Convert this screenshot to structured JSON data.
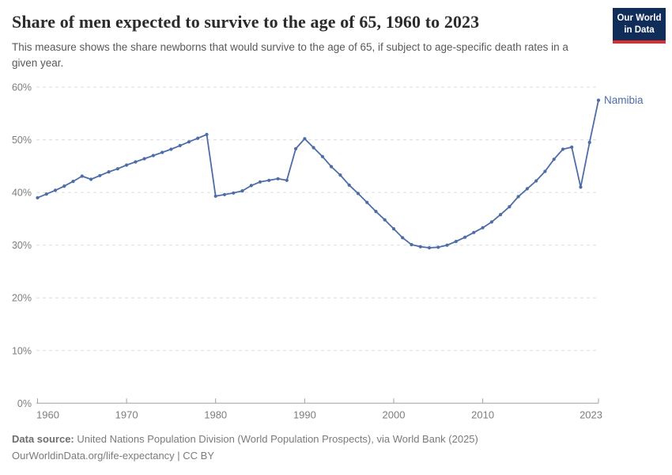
{
  "header": {
    "title": "Share of men expected to survive to the age of 65, 1960 to 2023",
    "subtitle": "This measure shows the share newborns that would survive to the age of 65, if subject to age-specific death rates in a given year."
  },
  "logo": {
    "line1": "Our World",
    "line2": "in Data",
    "bg_color": "#102d59",
    "stripe_color": "#dc2e2e"
  },
  "chart_data": {
    "type": "line",
    "title": "Share of men expected to survive to the age of 65, 1960 to 2023",
    "xlabel": "",
    "ylabel": "",
    "xlim": [
      1960,
      2023
    ],
    "ylim": [
      0,
      60
    ],
    "yticks": [
      0,
      10,
      20,
      30,
      40,
      50,
      60
    ],
    "ytick_suffix": "%",
    "xticks": [
      1960,
      1970,
      1980,
      1990,
      2000,
      2010,
      2023
    ],
    "grid": "horizontal-dashed",
    "legend_position": "end-of-line-label",
    "series": [
      {
        "name": "Namibia",
        "color": "#4c6da6",
        "x": [
          1960,
          1961,
          1962,
          1963,
          1964,
          1965,
          1966,
          1967,
          1968,
          1969,
          1970,
          1971,
          1972,
          1973,
          1974,
          1975,
          1976,
          1977,
          1978,
          1979,
          1980,
          1981,
          1982,
          1983,
          1984,
          1985,
          1986,
          1987,
          1988,
          1989,
          1990,
          1991,
          1992,
          1993,
          1994,
          1995,
          1996,
          1997,
          1998,
          1999,
          2000,
          2001,
          2002,
          2003,
          2004,
          2005,
          2006,
          2007,
          2008,
          2009,
          2010,
          2011,
          2012,
          2013,
          2014,
          2015,
          2016,
          2017,
          2018,
          2019,
          2020,
          2021,
          2022,
          2023
        ],
        "values": [
          39.0,
          39.7,
          40.4,
          41.2,
          42.1,
          43.1,
          42.5,
          43.2,
          43.9,
          44.5,
          45.2,
          45.8,
          46.4,
          47.0,
          47.6,
          48.2,
          48.9,
          49.6,
          50.3,
          51.0,
          39.3,
          39.6,
          39.9,
          40.3,
          41.3,
          42.0,
          42.3,
          42.6,
          42.3,
          48.3,
          50.2,
          48.5,
          46.8,
          44.9,
          43.3,
          41.4,
          39.8,
          38.1,
          36.4,
          34.8,
          33.1,
          31.4,
          30.1,
          29.7,
          29.5,
          29.6,
          30.0,
          30.7,
          31.5,
          32.4,
          33.3,
          34.4,
          35.8,
          37.3,
          39.2,
          40.7,
          42.2,
          44.0,
          46.3,
          48.2,
          48.6,
          41.0,
          49.5,
          57.5
        ]
      }
    ]
  },
  "footer": {
    "datasource_label": "Data source:",
    "datasource_text": "United Nations Population Division (World Population Prospects), via World Bank (2025)",
    "citation": "OurWorldinData.org/life-expectancy | CC BY"
  }
}
